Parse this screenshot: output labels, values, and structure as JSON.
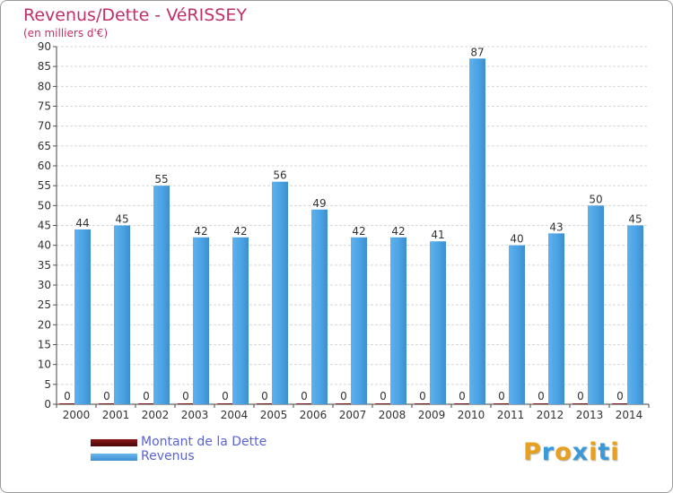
{
  "header": {
    "title": "Revenus/Dette - VéRISSEY",
    "subtitle": "(en milliers d'€)"
  },
  "chart_data": {
    "type": "bar",
    "title": "Revenus/Dette - VéRISSEY",
    "ylabel": "(en milliers d'€)",
    "xlabel": "",
    "categories": [
      "2000",
      "2001",
      "2002",
      "2003",
      "2004",
      "2005",
      "2006",
      "2007",
      "2008",
      "2009",
      "2010",
      "2011",
      "2012",
      "2013",
      "2014"
    ],
    "series": [
      {
        "name": "Montant de la Dette",
        "color": "#6b0d0d",
        "values": [
          0,
          0,
          0,
          0,
          0,
          0,
          0,
          0,
          0,
          0,
          0,
          0,
          0,
          0,
          0
        ]
      },
      {
        "name": "Revenus",
        "color": "#4ba2e3",
        "values": [
          44,
          45,
          55,
          42,
          42,
          56,
          49,
          42,
          42,
          41,
          87,
          40,
          43,
          50,
          45
        ]
      }
    ],
    "ylim": [
      0,
      90
    ],
    "yticks": [
      0,
      5,
      10,
      15,
      20,
      25,
      30,
      35,
      40,
      45,
      50,
      55,
      60,
      65,
      70,
      75,
      80,
      85,
      90
    ],
    "grid": true,
    "legend_position": "bottom-left"
  },
  "legend": {
    "items": [
      {
        "label": "Montant de la Dette",
        "color": "#6b0d0d"
      },
      {
        "label": "Revenus",
        "color": "#4ba2e3"
      }
    ]
  },
  "logo": {
    "letters": [
      "P",
      "r",
      "o",
      "x",
      "i",
      "t",
      "i"
    ],
    "colors": [
      "#e8a020",
      "#3a9ad9",
      "#e8a020",
      "#3a9ad9",
      "#e8a020",
      "#3a9ad9",
      "#e8a020"
    ]
  }
}
